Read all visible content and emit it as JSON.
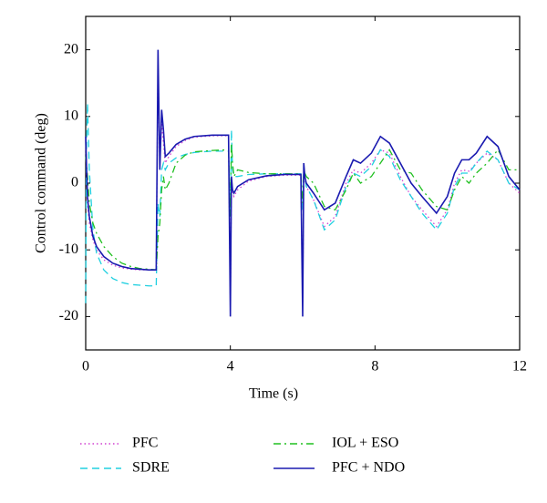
{
  "chart_data": {
    "type": "line",
    "xlabel": "Time (s)",
    "ylabel": "Control command (deg)",
    "x": [
      0,
      0.02,
      0.05,
      0.1,
      0.2,
      0.3,
      0.5,
      0.75,
      1.0,
      1.25,
      1.5,
      1.75,
      1.95,
      2.0,
      2.05,
      2.1,
      2.15,
      2.2,
      2.3,
      2.5,
      2.75,
      3.0,
      3.5,
      3.95,
      4.0,
      4.03,
      4.06,
      4.1,
      4.2,
      4.5,
      5.0,
      5.5,
      5.95,
      6.0,
      6.03,
      6.06,
      6.1,
      6.3,
      6.6,
      6.9,
      7.2,
      7.4,
      7.6,
      7.9,
      8.15,
      8.4,
      8.7,
      9.0,
      9.3,
      9.7,
      10.0,
      10.2,
      10.4,
      10.6,
      10.8,
      11.1,
      11.4,
      11.7,
      12.0
    ],
    "series": [
      {
        "name": "PFC",
        "color": "#d040d0",
        "style": "dotted",
        "values": [
          7,
          2,
          -3,
          -6,
          -8.5,
          -10,
          -11.5,
          -12.3,
          -12.7,
          -12.9,
          -13,
          -13,
          -13,
          18,
          3,
          9,
          6,
          3,
          4,
          5.5,
          6.4,
          6.9,
          7.1,
          7.1,
          -18,
          0,
          -1.5,
          -2,
          -1,
          0.3,
          1,
          1.2,
          1.2,
          -18,
          2,
          0.5,
          -0.5,
          -2.5,
          -6.5,
          -5,
          0,
          2,
          1.5,
          3,
          5,
          4.5,
          1,
          -2,
          -4,
          -6.5,
          -4,
          0,
          2,
          1.8,
          3,
          4.5,
          3.5,
          0,
          -1.5
        ]
      },
      {
        "name": "SDRE",
        "color": "#20d0e0",
        "style": "dashed",
        "values": [
          -18,
          5,
          12,
          2,
          -7,
          -10.5,
          -13,
          -14.3,
          -14.9,
          -15.2,
          -15.3,
          -15.4,
          -15.4,
          -3,
          -5,
          2,
          3,
          2,
          3,
          3.8,
          4.3,
          4.6,
          4.8,
          4.8,
          -5,
          8,
          2,
          1,
          1,
          1.3,
          1.4,
          1.4,
          1.4,
          -4,
          3,
          1,
          -0.5,
          -2.5,
          -7,
          -5.5,
          -0.5,
          1.5,
          1,
          2.5,
          5,
          4,
          0.5,
          -2,
          -4.5,
          -7,
          -4.5,
          -0.5,
          1.5,
          1.5,
          3,
          4.8,
          3.5,
          0,
          -1
        ]
      },
      {
        "name": "IOL + ESO",
        "color": "#20c020",
        "style": "dashdot",
        "values": [
          4,
          3,
          1,
          -3,
          -6,
          -7.5,
          -9.5,
          -11,
          -12,
          -12.5,
          -12.8,
          -12.9,
          -13,
          -8,
          -6,
          -1,
          1,
          -1,
          0,
          3,
          4.2,
          4.7,
          4.9,
          5,
          -5,
          6,
          3,
          1,
          2,
          1.6,
          1.4,
          1.4,
          1.4,
          -3,
          2,
          1.5,
          1,
          0,
          -3.5,
          -4,
          -1,
          1.5,
          0,
          1,
          3,
          5,
          2,
          1.5,
          -1,
          -3.5,
          -4,
          -1,
          1,
          0,
          1.5,
          3,
          5,
          2,
          2
        ]
      },
      {
        "name": "PFC + NDO",
        "color": "#1a1ab0",
        "style": "solid",
        "values": [
          7,
          3,
          -2,
          -5,
          -8,
          -9.5,
          -11,
          -12,
          -12.5,
          -12.8,
          -12.9,
          -13,
          -13,
          20,
          2,
          11,
          8,
          4,
          4.5,
          5.8,
          6.6,
          7,
          7.2,
          7.2,
          -20,
          1,
          -1,
          -1.5,
          -0.5,
          0.5,
          1.1,
          1.3,
          1.3,
          -20,
          3,
          1,
          0,
          -1.5,
          -4,
          -3,
          1,
          3.5,
          3,
          4.5,
          7,
          6,
          3,
          0,
          -2,
          -4.5,
          -2,
          1.5,
          3.5,
          3.5,
          4.5,
          7,
          5.5,
          1,
          -1
        ]
      }
    ],
    "xlim": [
      0,
      12
    ],
    "xticks": [
      0,
      4,
      8,
      12
    ],
    "ylim": [
      -25,
      25
    ],
    "yticks": [
      -20,
      -10,
      0,
      10,
      20
    ]
  }
}
